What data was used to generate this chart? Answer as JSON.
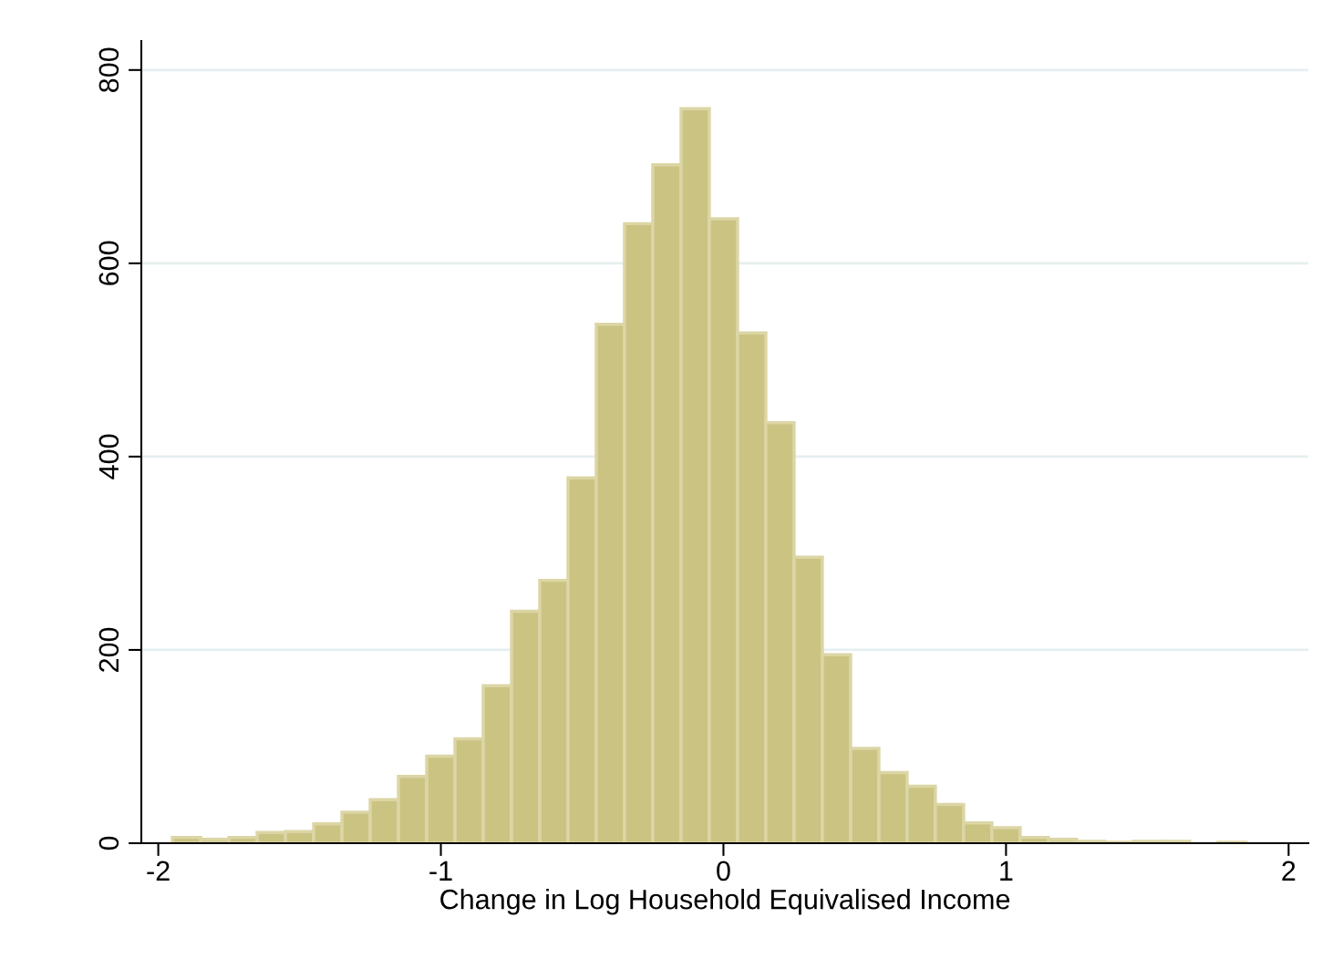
{
  "chart_data": {
    "type": "histogram",
    "xlabel": "Change in Log Household Equivalised Income",
    "bins": [
      -1.95,
      -1.85,
      -1.75,
      -1.65,
      -1.55,
      -1.45,
      -1.35,
      -1.25,
      -1.15,
      -1.05,
      -0.95,
      -0.85,
      -0.75,
      -0.65,
      -0.55,
      -0.45,
      -0.35,
      -0.25,
      -0.15,
      -0.05,
      0.05,
      0.15,
      0.25,
      0.35,
      0.45,
      0.55,
      0.65,
      0.75,
      0.85,
      0.95,
      1.05,
      1.15,
      1.25,
      1.35,
      1.45,
      1.55,
      1.65,
      1.75,
      1.85
    ],
    "values": [
      6,
      4,
      6,
      11,
      12,
      20,
      32,
      45,
      69,
      90,
      108,
      163,
      240,
      272,
      378,
      537,
      641,
      702,
      760,
      646,
      528,
      435,
      296,
      195,
      98,
      73,
      59,
      40,
      21,
      16,
      6,
      4,
      2,
      1,
      2,
      2,
      0,
      1
    ],
    "color": "#cbc382",
    "xlim": [
      -2.06,
      2.07
    ],
    "ylim": [
      0,
      830
    ],
    "xticks": [
      -2,
      -1,
      0,
      1,
      2
    ],
    "yticks": [
      0,
      200,
      400,
      600,
      800
    ],
    "grid": "y"
  }
}
